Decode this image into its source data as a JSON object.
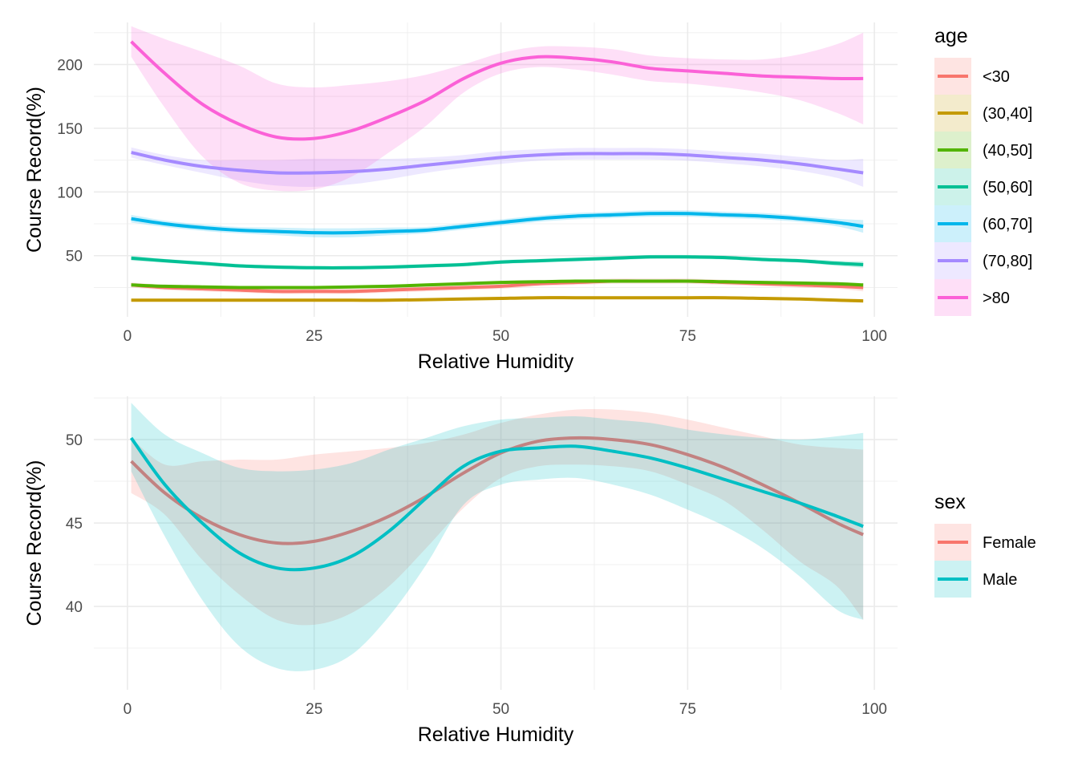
{
  "chart_data": [
    {
      "type": "line",
      "xlabel": "Relative Humidity",
      "ylabel": "Course Record(%)",
      "xlim": [
        0,
        100
      ],
      "ylim": [
        2,
        233
      ],
      "x_ticks": [
        0,
        25,
        50,
        75,
        100
      ],
      "y_ticks": [
        50,
        100,
        150,
        200
      ],
      "grid": true,
      "legend_title": "age",
      "legend_position": "right",
      "x": [
        0.5,
        5,
        10,
        15,
        20,
        25,
        30,
        35,
        40,
        45,
        50,
        55,
        60,
        65,
        70,
        75,
        80,
        85,
        90,
        95,
        98.5
      ],
      "series": [
        {
          "name": "<30",
          "color": "#F8766D",
          "values": [
            27,
            25,
            24,
            23,
            22,
            22,
            22,
            23,
            24,
            25,
            26,
            28,
            29,
            30,
            30,
            30,
            29,
            28,
            27,
            26,
            25
          ],
          "lower": [
            25,
            23,
            22,
            21,
            20,
            20,
            20,
            21,
            22,
            23,
            24,
            26,
            27,
            28,
            28,
            28,
            27,
            26,
            25,
            24,
            22
          ],
          "upper": [
            29,
            27,
            26,
            25,
            24,
            24,
            24,
            25,
            26,
            27,
            28,
            30,
            31,
            32,
            32,
            32,
            31,
            30,
            29,
            28,
            28
          ]
        },
        {
          "name": "(30,40]",
          "color": "#C49A00",
          "values": [
            15,
            15,
            15,
            15,
            15,
            15,
            15,
            15,
            15.5,
            16,
            16.5,
            17,
            17,
            17,
            17,
            17,
            17,
            16.5,
            16,
            15,
            14.5
          ],
          "lower": [
            14,
            14,
            14,
            14,
            14,
            14,
            14,
            14,
            14.5,
            15,
            15.5,
            16,
            16,
            16,
            16,
            16,
            16,
            15.5,
            15,
            14,
            13
          ],
          "upper": [
            16,
            16,
            16,
            16,
            16,
            16,
            16,
            16,
            16.5,
            17,
            17.5,
            18,
            18,
            18,
            18,
            18,
            18,
            17.5,
            17,
            16,
            16
          ]
        },
        {
          "name": "(40,50]",
          "color": "#53B400",
          "values": [
            27,
            26,
            25.5,
            25,
            25,
            25,
            25.5,
            26,
            27,
            28,
            29,
            29.5,
            30,
            30,
            30,
            30,
            29.5,
            29,
            28.5,
            28,
            27
          ],
          "lower": [
            26,
            25,
            24.5,
            24,
            24,
            24,
            24.5,
            25,
            26,
            27,
            28,
            28.5,
            29,
            29,
            29,
            29,
            28.5,
            28,
            27.5,
            27,
            25.5
          ],
          "upper": [
            28,
            27,
            26.5,
            26,
            26,
            26,
            26.5,
            27,
            28,
            29,
            30,
            30.5,
            31,
            31,
            31,
            31,
            30.5,
            30,
            29.5,
            29,
            28.5
          ]
        },
        {
          "name": "(50,60]",
          "color": "#00C094",
          "values": [
            48,
            46,
            44,
            42,
            41,
            40.5,
            40.5,
            41,
            42,
            43,
            45,
            46,
            47,
            48,
            49,
            49,
            48.5,
            47,
            46,
            44,
            43
          ],
          "lower": [
            46,
            44.5,
            42.5,
            40.5,
            39.5,
            39,
            39,
            39.5,
            40.5,
            41.5,
            43.5,
            44.5,
            45.5,
            46.5,
            47.5,
            47.5,
            47,
            45.5,
            44.5,
            42,
            40.5
          ],
          "upper": [
            50,
            47.5,
            45.5,
            43.5,
            42.5,
            42,
            42,
            42.5,
            43.5,
            44.5,
            46.5,
            47.5,
            48.5,
            49.5,
            50.5,
            50.5,
            50,
            48.5,
            47.5,
            46,
            45.5
          ]
        },
        {
          "name": "(60,70]",
          "color": "#00B6EB",
          "values": [
            79,
            75,
            72,
            70,
            69,
            68,
            68,
            69,
            70,
            73,
            76,
            79,
            81,
            82,
            83,
            83,
            82,
            81,
            79,
            76,
            73
          ],
          "lower": [
            76,
            72.5,
            69.5,
            67.5,
            66,
            64.5,
            64.5,
            66,
            67.5,
            70.5,
            73.5,
            76.5,
            78.5,
            79.5,
            80.5,
            80.5,
            79.5,
            78.5,
            76.5,
            73,
            68
          ],
          "upper": [
            82,
            77.5,
            74.5,
            72.5,
            72,
            71.5,
            71.5,
            72,
            72.5,
            75.5,
            78.5,
            81.5,
            83.5,
            84.5,
            85.5,
            85.5,
            84.5,
            83.5,
            81.5,
            79,
            78
          ]
        },
        {
          "name": "(70,80]",
          "color": "#A58AFF",
          "values": [
            131,
            125,
            120,
            117,
            115,
            115,
            116,
            118,
            121,
            124,
            127,
            129,
            130,
            130,
            130,
            129,
            127,
            125,
            122,
            118,
            115
          ],
          "lower": [
            127,
            121,
            115,
            109,
            105,
            104,
            106,
            110,
            115,
            119,
            122,
            124.5,
            125.5,
            125.5,
            125.5,
            124.5,
            122.5,
            120,
            116.5,
            111,
            104
          ],
          "upper": [
            135,
            129,
            125,
            125,
            125,
            126,
            126,
            126,
            127,
            129,
            132,
            133.5,
            134.5,
            134.5,
            134.5,
            133.5,
            131.5,
            130,
            127.5,
            125,
            126
          ]
        },
        {
          "name": ">80",
          "color": "#FB61D7",
          "values": [
            218,
            193,
            169,
            153,
            143,
            142,
            148,
            159,
            172,
            189,
            201,
            206,
            205,
            202,
            197,
            195,
            193,
            191,
            190,
            189,
            189
          ],
          "lower": [
            206,
            166,
            128,
            107,
            101,
            102,
            112,
            131,
            152,
            178,
            193,
            198,
            196,
            192,
            187,
            185,
            182,
            178,
            172,
            162,
            153
          ],
          "upper": [
            230,
            220,
            210,
            199,
            185,
            182,
            184,
            187,
            192,
            200,
            209,
            214,
            214,
            212,
            207,
            205,
            204,
            204,
            208,
            216,
            225
          ]
        }
      ]
    },
    {
      "type": "line",
      "xlabel": "Relative Humidity",
      "ylabel": "Course Record(%)",
      "xlim": [
        0,
        100
      ],
      "ylim": [
        35,
        52.6
      ],
      "x_ticks": [
        0,
        25,
        50,
        75,
        100
      ],
      "y_ticks": [
        40,
        45,
        50
      ],
      "grid": true,
      "legend_title": "sex",
      "legend_position": "right",
      "x": [
        0.5,
        5,
        10,
        15,
        20,
        25,
        30,
        35,
        40,
        45,
        50,
        55,
        60,
        65,
        70,
        75,
        80,
        85,
        90,
        95,
        98.5
      ],
      "series": [
        {
          "name": "Female",
          "color": "#F8766D",
          "line_color": "#C28281",
          "values": [
            48.7,
            46.8,
            45.3,
            44.3,
            43.8,
            43.9,
            44.5,
            45.4,
            46.6,
            48,
            49.2,
            49.9,
            50.1,
            50,
            49.7,
            49.1,
            48.3,
            47.3,
            46.2,
            45,
            44.3
          ],
          "lower": [
            46.8,
            45.5,
            42.8,
            40.7,
            39.2,
            38.9,
            39.6,
            41.2,
            43.5,
            45.9,
            47.7,
            48.4,
            48.5,
            48.4,
            48.1,
            47.3,
            46.3,
            44.6,
            42.7,
            41.2,
            39.2
          ],
          "upper": [
            50.1,
            48.5,
            48.7,
            48.8,
            48.8,
            49.1,
            49.3,
            49.5,
            49.8,
            50.3,
            51,
            51.5,
            51.8,
            51.8,
            51.6,
            51.2,
            50.7,
            50.2,
            49.7,
            49.5,
            49.4
          ]
        },
        {
          "name": "Male",
          "color": "#00BFC4",
          "line_color": "#00BFC4",
          "values": [
            50.1,
            47.3,
            45,
            43.2,
            42.3,
            42.3,
            43,
            44.5,
            46.5,
            48.4,
            49.3,
            49.5,
            49.6,
            49.3,
            48.9,
            48.3,
            47.6,
            46.9,
            46.2,
            45.4,
            44.8
          ],
          "lower": [
            48.1,
            44.2,
            40.4,
            37.6,
            36.3,
            36.2,
            37.1,
            39.4,
            42.5,
            46.1,
            47.3,
            47.6,
            47.7,
            47.3,
            46.7,
            45.8,
            44.8,
            43.5,
            41.8,
            39.8,
            39.2
          ],
          "upper": [
            52.2,
            50.3,
            49.2,
            48.3,
            48.1,
            48.2,
            48.6,
            49.4,
            50.1,
            50.8,
            51.2,
            51.3,
            51.4,
            51.2,
            51,
            50.6,
            50.3,
            50.1,
            50,
            50.2,
            50.4
          ]
        }
      ]
    }
  ]
}
